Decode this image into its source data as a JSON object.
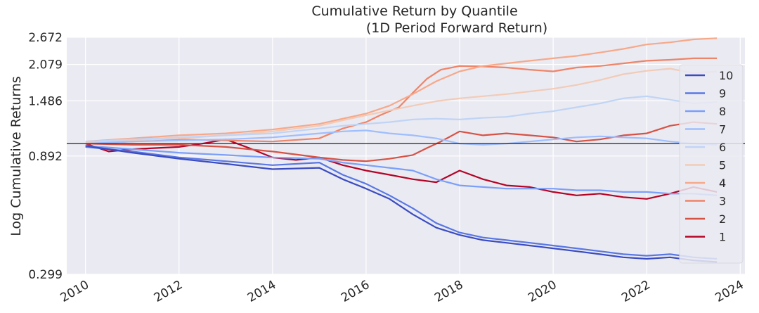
{
  "chart_data": {
    "type": "line",
    "title": "Cumulative Return by Quantile",
    "subtitle": "(1D Period Forward Return)",
    "xlabel": "",
    "ylabel": "Log Cumulative Returns",
    "y_scale": "log",
    "xlim": [
      2009.6,
      2024.1
    ],
    "ylim": [
      0.299,
      2.672
    ],
    "x_ticks": [
      "2010",
      "2012",
      "2014",
      "2016",
      "2018",
      "2020",
      "2022",
      "2024"
    ],
    "y_ticks": [
      "0.299",
      "0.892",
      "1.486",
      "2.079",
      "2.672"
    ],
    "reference_line": 1.0,
    "grid": true,
    "legend_position": "right",
    "background_color": "#eaeaf2",
    "series": [
      {
        "name": "10",
        "color": "#3b4cc0",
        "x": [
          2010.0,
          2011.0,
          2012.0,
          2013.0,
          2014.0,
          2015.0,
          2015.5,
          2016.0,
          2016.5,
          2017.0,
          2017.5,
          2018.0,
          2018.5,
          2019.0,
          2019.5,
          2020.0,
          2020.5,
          2021.0,
          2021.5,
          2022.0,
          2022.5,
          2023.0,
          2023.5
        ],
        "y": [
          0.98,
          0.92,
          0.87,
          0.83,
          0.79,
          0.8,
          0.72,
          0.66,
          0.6,
          0.52,
          0.46,
          0.43,
          0.41,
          0.4,
          0.39,
          0.38,
          0.37,
          0.36,
          0.35,
          0.345,
          0.35,
          0.34,
          0.335
        ]
      },
      {
        "name": "9",
        "color": "#5977e3",
        "x": [
          2010.0,
          2011.0,
          2012.0,
          2013.0,
          2014.0,
          2015.0,
          2015.5,
          2016.0,
          2016.5,
          2017.0,
          2017.5,
          2018.0,
          2018.5,
          2019.0,
          2019.5,
          2020.0,
          2020.5,
          2021.0,
          2021.5,
          2022.0,
          2022.5,
          2023.0,
          2023.5
        ],
        "y": [
          0.97,
          0.93,
          0.88,
          0.85,
          0.82,
          0.84,
          0.75,
          0.69,
          0.62,
          0.55,
          0.48,
          0.44,
          0.42,
          0.41,
          0.4,
          0.39,
          0.38,
          0.37,
          0.36,
          0.355,
          0.36,
          0.35,
          0.345
        ]
      },
      {
        "name": "8",
        "color": "#7b9ff9",
        "x": [
          2010.0,
          2011.0,
          2012.0,
          2013.0,
          2014.0,
          2015.0,
          2015.5,
          2016.0,
          2016.5,
          2017.0,
          2017.5,
          2018.0,
          2018.5,
          2019.0,
          2019.5,
          2020.0,
          2020.5,
          2021.0,
          2021.5,
          2022.0,
          2022.5,
          2023.0,
          2023.5
        ],
        "y": [
          0.98,
          0.95,
          0.92,
          0.9,
          0.88,
          0.87,
          0.84,
          0.82,
          0.8,
          0.78,
          0.72,
          0.68,
          0.67,
          0.66,
          0.66,
          0.66,
          0.65,
          0.65,
          0.64,
          0.64,
          0.63,
          0.63,
          0.62
        ]
      },
      {
        "name": "7",
        "color": "#9ebeff",
        "x": [
          2010.0,
          2011.0,
          2012.0,
          2013.0,
          2014.0,
          2015.0,
          2015.5,
          2016.0,
          2016.5,
          2017.0,
          2017.5,
          2018.0,
          2018.5,
          2019.0,
          2019.5,
          2020.0,
          2020.5,
          2021.0,
          2021.5,
          2022.0,
          2022.5,
          2023.0,
          2023.5
        ],
        "y": [
          1.0,
          1.02,
          1.03,
          1.04,
          1.06,
          1.1,
          1.12,
          1.13,
          1.1,
          1.08,
          1.05,
          1.0,
          0.99,
          1.0,
          1.02,
          1.04,
          1.06,
          1.07,
          1.06,
          1.05,
          1.02,
          1.0,
          0.99
        ]
      },
      {
        "name": "6",
        "color": "#c0d4f5",
        "x": [
          2010.0,
          2011.0,
          2012.0,
          2013.0,
          2014.0,
          2015.0,
          2015.5,
          2016.0,
          2016.5,
          2017.0,
          2017.5,
          2018.0,
          2018.5,
          2019.0,
          2019.5,
          2020.0,
          2020.5,
          2021.0,
          2021.5,
          2022.0,
          2022.5,
          2023.0,
          2023.5
        ],
        "y": [
          1.02,
          1.04,
          1.06,
          1.08,
          1.1,
          1.15,
          1.18,
          1.2,
          1.22,
          1.25,
          1.26,
          1.25,
          1.27,
          1.28,
          1.32,
          1.35,
          1.4,
          1.45,
          1.52,
          1.55,
          1.5,
          1.45,
          1.47
        ]
      },
      {
        "name": "5",
        "color": "#f2cbb7",
        "x": [
          2010.0,
          2011.0,
          2012.0,
          2013.0,
          2014.0,
          2015.0,
          2015.5,
          2016.0,
          2016.5,
          2017.0,
          2017.5,
          2018.0,
          2018.5,
          2019.0,
          2019.5,
          2020.0,
          2020.5,
          2021.0,
          2021.5,
          2022.0,
          2022.5,
          2023.0,
          2023.5
        ],
        "y": [
          1.01,
          1.03,
          1.05,
          1.08,
          1.12,
          1.18,
          1.24,
          1.3,
          1.36,
          1.42,
          1.48,
          1.52,
          1.55,
          1.58,
          1.62,
          1.66,
          1.72,
          1.8,
          1.9,
          1.96,
          2.0,
          1.92,
          1.95
        ]
      },
      {
        "name": "4",
        "color": "#f7a889",
        "x": [
          2010.0,
          2011.0,
          2012.0,
          2013.0,
          2014.0,
          2015.0,
          2015.5,
          2016.0,
          2016.5,
          2017.0,
          2017.5,
          2018.0,
          2018.5,
          2019.0,
          2019.5,
          2020.0,
          2020.5,
          2021.0,
          2021.5,
          2022.0,
          2022.5,
          2023.0,
          2023.5
        ],
        "y": [
          1.02,
          1.05,
          1.08,
          1.1,
          1.14,
          1.2,
          1.26,
          1.32,
          1.42,
          1.58,
          1.78,
          1.95,
          2.05,
          2.1,
          2.15,
          2.2,
          2.25,
          2.32,
          2.4,
          2.5,
          2.55,
          2.62,
          2.65
        ]
      },
      {
        "name": "3",
        "color": "#ee8468",
        "x": [
          2010.0,
          2011.0,
          2012.0,
          2013.0,
          2014.0,
          2015.0,
          2015.5,
          2016.0,
          2016.3,
          2016.7,
          2017.0,
          2017.3,
          2017.6,
          2018.0,
          2018.5,
          2019.0,
          2019.5,
          2020.0,
          2020.5,
          2021.0,
          2021.5,
          2022.0,
          2022.5,
          2023.0,
          2023.5
        ],
        "y": [
          1.0,
          1.02,
          1.04,
          1.03,
          1.02,
          1.05,
          1.15,
          1.22,
          1.3,
          1.4,
          1.6,
          1.82,
          1.98,
          2.05,
          2.04,
          2.02,
          1.98,
          1.95,
          2.02,
          2.05,
          2.1,
          2.15,
          2.17,
          2.2,
          2.2
        ]
      },
      {
        "name": "2",
        "color": "#d65244",
        "x": [
          2010.0,
          2011.0,
          2012.0,
          2013.0,
          2014.0,
          2015.0,
          2015.5,
          2016.0,
          2016.5,
          2017.0,
          2017.3,
          2017.6,
          2018.0,
          2018.5,
          2019.0,
          2019.5,
          2020.0,
          2020.5,
          2021.0,
          2021.5,
          2022.0,
          2022.5,
          2023.0,
          2023.5
        ],
        "y": [
          1.0,
          0.99,
          0.99,
          0.97,
          0.93,
          0.88,
          0.86,
          0.85,
          0.87,
          0.9,
          0.96,
          1.02,
          1.12,
          1.08,
          1.1,
          1.08,
          1.06,
          1.02,
          1.04,
          1.08,
          1.1,
          1.18,
          1.22,
          1.2
        ]
      },
      {
        "name": "1",
        "color": "#b40426",
        "x": [
          2010.0,
          2010.5,
          2011.0,
          2011.5,
          2012.0,
          2012.5,
          2013.0,
          2013.5,
          2014.0,
          2014.5,
          2015.0,
          2015.5,
          2016.0,
          2016.5,
          2017.0,
          2017.5,
          2018.0,
          2018.5,
          2019.0,
          2019.5,
          2020.0,
          2020.5,
          2021.0,
          2021.5,
          2022.0,
          2022.5,
          2023.0,
          2023.5
        ],
        "y": [
          1.0,
          0.93,
          0.95,
          0.96,
          0.97,
          1.0,
          1.04,
          0.96,
          0.88,
          0.86,
          0.88,
          0.82,
          0.78,
          0.75,
          0.72,
          0.7,
          0.78,
          0.72,
          0.68,
          0.67,
          0.64,
          0.62,
          0.63,
          0.61,
          0.6,
          0.63,
          0.67,
          0.64
        ]
      }
    ]
  }
}
